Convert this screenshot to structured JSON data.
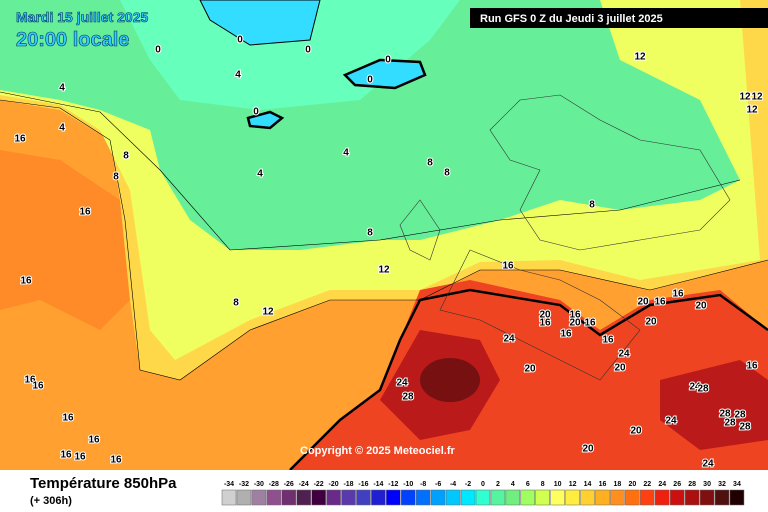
{
  "header": {
    "date": "Mardi 15 juillet 2025",
    "time": "20:00 locale",
    "run": "Run GFS 0 Z du Jeudi 3 juillet 2025",
    "copyright": "Copyright © 2025 Meteociel.fr"
  },
  "footer": {
    "title": "Température 850hPa",
    "lead": "(+ 306h)"
  },
  "legend": {
    "labels": [
      -34,
      -32,
      -30,
      -28,
      -26,
      -24,
      -22,
      -20,
      -18,
      -16,
      -14,
      -12,
      -10,
      -8,
      -6,
      -4,
      -2,
      0,
      2,
      4,
      6,
      8,
      10,
      12,
      14,
      16,
      18,
      20,
      22,
      24,
      26,
      28,
      30,
      32,
      34
    ],
    "colors": [
      "#d0d0d0",
      "#b0b0b0",
      "#a080a0",
      "#905090",
      "#703070",
      "#502050",
      "#400040",
      "#6a2a8a",
      "#5a3aaa",
      "#4040c0",
      "#2020d0",
      "#0000ff",
      "#0040ff",
      "#0070ff",
      "#00a0ff",
      "#00c8ff",
      "#00e8ff",
      "#30ffd0",
      "#55f5a0",
      "#70ee80",
      "#a0ff60",
      "#d0ff50",
      "#ffff60",
      "#ffee40",
      "#ffd030",
      "#ffb020",
      "#ff9020",
      "#ff7010",
      "#ff4010",
      "#ee2010",
      "#cc1010",
      "#aa1010",
      "#801010",
      "#501010",
      "#200000"
    ]
  },
  "contour_labels": [
    0,
    0,
    0,
    0,
    0,
    0,
    4,
    4,
    4,
    4,
    4,
    8,
    8,
    8,
    8,
    8,
    8,
    8,
    12,
    12,
    12,
    12,
    12,
    12,
    16,
    16,
    16,
    16,
    16,
    16,
    16,
    16,
    16,
    16,
    16,
    20,
    16,
    16,
    20,
    16,
    16,
    16,
    20,
    16,
    16,
    20,
    20,
    24,
    20,
    24,
    20,
    16,
    24,
    28,
    24,
    28,
    28,
    28,
    28,
    28,
    20,
    24,
    20,
    24
  ]
}
